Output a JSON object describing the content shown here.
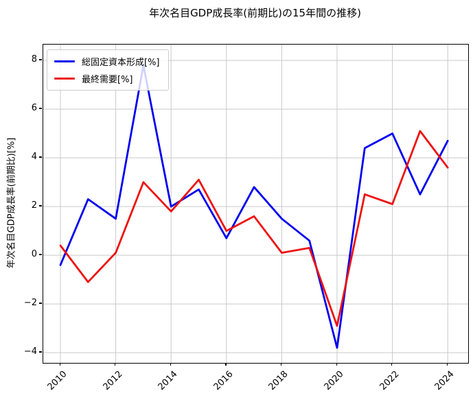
{
  "title": "年次名目GDP成長率(前期比)の15年間の推移)",
  "chart_data": {
    "type": "line",
    "title": "年次名目GDP成長率(前期比)の15年間の推移)",
    "xlabel": "",
    "ylabel": "年次名目GDP成長率(前期比)[%]",
    "x": [
      2010,
      2011,
      2012,
      2013,
      2014,
      2015,
      2016,
      2017,
      2018,
      2019,
      2020,
      2021,
      2022,
      2023,
      2024
    ],
    "series": [
      {
        "name": "総固定資本形成[%]",
        "color": "#0000ee",
        "values": [
          -0.4,
          2.3,
          1.5,
          7.8,
          2.0,
          2.7,
          0.7,
          2.8,
          1.5,
          0.6,
          -3.8,
          4.4,
          5.0,
          2.5,
          4.7
        ]
      },
      {
        "name": "最終需要[%]",
        "color": "#ee1111",
        "values": [
          0.4,
          -1.1,
          0.1,
          3.0,
          1.8,
          3.1,
          1.0,
          1.6,
          0.1,
          0.3,
          -2.9,
          2.5,
          2.1,
          5.1,
          3.6
        ]
      }
    ],
    "xlim": [
      2009.38,
      2024.74
    ],
    "ylim": [
      -4.42,
      8.65
    ],
    "xticks": [
      2010,
      2012,
      2014,
      2016,
      2018,
      2020,
      2022,
      2024
    ],
    "xtick_labels": [
      "2010",
      "2012",
      "2014",
      "2016",
      "2018",
      "2020",
      "2022",
      "2024"
    ],
    "yticks": [
      -4,
      -2,
      0,
      2,
      4,
      6,
      8
    ],
    "ytick_labels": [
      "−4",
      "−2",
      "0",
      "2",
      "4",
      "6",
      "8"
    ],
    "grid": true,
    "grid_color": "#c9c9c9",
    "legend_position": "upper left",
    "background": "#ffffff",
    "line_width": 2.8
  }
}
